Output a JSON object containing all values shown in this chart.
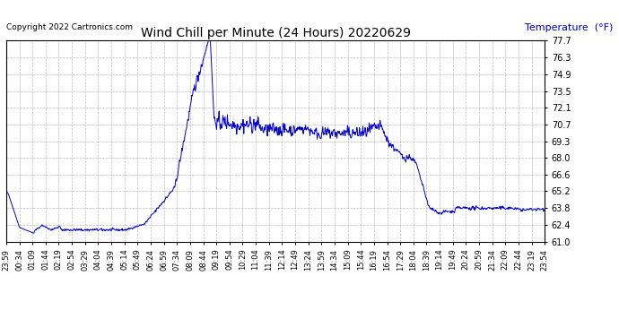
{
  "title": "Wind Chill per Minute (24 Hours) 20220629",
  "ylabel": "Temperature  (°F)",
  "copyright_text": "Copyright 2022 Cartronics.com",
  "line_color": "#0000cc",
  "ylabel_color": "#0000cc",
  "background_color": "#ffffff",
  "grid_color": "#aaaaaa",
  "ylim": [
    61.0,
    77.7
  ],
  "yticks": [
    61.0,
    62.4,
    63.8,
    65.2,
    66.6,
    68.0,
    69.3,
    70.7,
    72.1,
    73.5,
    74.9,
    76.3,
    77.7
  ],
  "xtick_labels": [
    "23:59",
    "00:34",
    "01:09",
    "01:44",
    "02:19",
    "02:54",
    "03:29",
    "04:04",
    "04:39",
    "05:14",
    "05:49",
    "06:24",
    "06:59",
    "07:34",
    "08:09",
    "08:44",
    "09:19",
    "09:54",
    "10:29",
    "11:04",
    "11:39",
    "12:14",
    "12:49",
    "13:24",
    "13:59",
    "14:34",
    "15:09",
    "15:44",
    "16:19",
    "16:54",
    "17:29",
    "18:04",
    "18:39",
    "19:14",
    "19:49",
    "20:24",
    "20:59",
    "21:34",
    "22:09",
    "22:44",
    "23:19",
    "23:54"
  ],
  "num_points": 1440,
  "title_fontsize": 10,
  "ylabel_fontsize": 8,
  "ytick_fontsize": 7,
  "xtick_fontsize": 6,
  "copyright_fontsize": 6.5
}
